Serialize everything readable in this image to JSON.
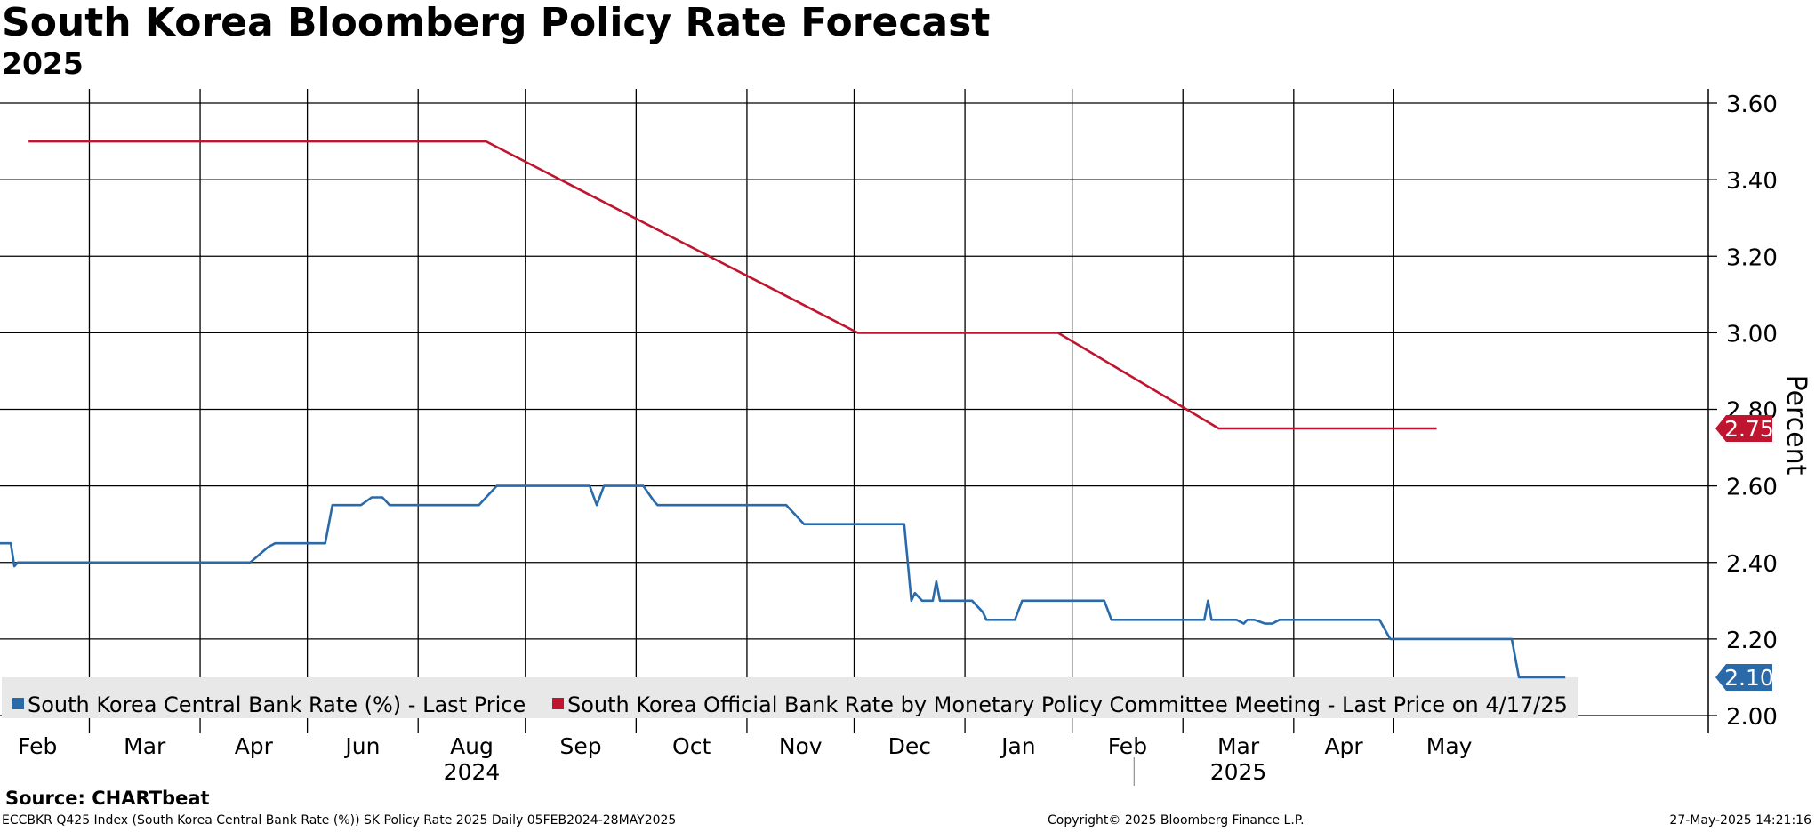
{
  "title": "South Korea Bloomberg Policy Rate Forecast",
  "subtitle": "2025",
  "source": "Source: CHARTbeat",
  "footer": {
    "left": "ECCBKR Q425 Index (South Korea Central Bank Rate (%)) SK Policy Rate 2025  Daily 05FEB2024-28MAY2025",
    "middle": "Copyright© 2025 Bloomberg Finance L.P.",
    "right": "27-May-2025 14:21:16"
  },
  "colors": {
    "blue": "#2b6aa8",
    "red": "#c0152f",
    "grid": "#000000"
  },
  "chart_data": {
    "type": "line",
    "title": "South Korea Bloomberg Policy Rate Forecast",
    "subtitle": "2025",
    "ylabel": "Percent",
    "ylim": [
      2.0,
      3.6
    ],
    "yticks": [
      "2.00",
      "2.20",
      "2.40",
      "2.60",
      "2.80",
      "3.00",
      "3.20",
      "3.40",
      "3.60"
    ],
    "grid": true,
    "legend_position": "bottom-left",
    "xlim": [
      "2024-02-05",
      "2025-05-28"
    ],
    "x_tick_labels": [
      {
        "label": "Feb",
        "date": "2024-02-01"
      },
      {
        "label": "Mar",
        "date": "2024-03-01"
      },
      {
        "label": "Apr",
        "date": "2024-04-01"
      },
      {
        "label": "Jun",
        "date": "2024-05-01"
      },
      {
        "label": "Aug",
        "date": "2024-06-01"
      },
      {
        "label": "Sep",
        "date": "2024-07-01"
      },
      {
        "label": "Oct",
        "date": "2024-08-01"
      },
      {
        "label": "Nov",
        "date": "2024-09-01"
      },
      {
        "label": "Dec",
        "date": "2024-10-01"
      },
      {
        "label": "Jan",
        "date": "2024-11-01"
      },
      {
        "label": "Feb",
        "date": "2024-12-01"
      },
      {
        "label": "Mar",
        "date": "2025-01-01"
      },
      {
        "label": "Apr",
        "date": "2025-02-01"
      },
      {
        "label": "May",
        "date": "2025-03-01"
      }
    ],
    "year_labels": [
      "2024",
      "2025"
    ],
    "series": [
      {
        "name": "South Korea Central Bank Rate (%) - Last Price",
        "color": "#2b6aa8",
        "last_value_label": "2.10",
        "points": [
          [
            "2024-02-05",
            2.45
          ],
          [
            "2024-02-08",
            2.45
          ],
          [
            "2024-02-09",
            2.39
          ],
          [
            "2024-02-10",
            2.4
          ],
          [
            "2024-04-15",
            2.4
          ],
          [
            "2024-04-20",
            2.44
          ],
          [
            "2024-04-22",
            2.45
          ],
          [
            "2024-05-06",
            2.45
          ],
          [
            "2024-05-08",
            2.55
          ],
          [
            "2024-05-16",
            2.55
          ],
          [
            "2024-05-19",
            2.57
          ],
          [
            "2024-05-22",
            2.57
          ],
          [
            "2024-05-24",
            2.55
          ],
          [
            "2024-06-18",
            2.55
          ],
          [
            "2024-06-21",
            2.58
          ],
          [
            "2024-06-23",
            2.6
          ],
          [
            "2024-07-19",
            2.6
          ],
          [
            "2024-07-21",
            2.55
          ],
          [
            "2024-07-23",
            2.6
          ],
          [
            "2024-08-03",
            2.6
          ],
          [
            "2024-08-06",
            2.56
          ],
          [
            "2024-08-07",
            2.55
          ],
          [
            "2024-09-12",
            2.55
          ],
          [
            "2024-09-15",
            2.52
          ],
          [
            "2024-09-17",
            2.5
          ],
          [
            "2024-10-15",
            2.5
          ],
          [
            "2024-10-17",
            2.3
          ],
          [
            "2024-10-18",
            2.32
          ],
          [
            "2024-10-20",
            2.3
          ],
          [
            "2024-10-23",
            2.3
          ],
          [
            "2024-10-24",
            2.35
          ],
          [
            "2024-10-25",
            2.3
          ],
          [
            "2024-11-03",
            2.3
          ],
          [
            "2024-11-06",
            2.27
          ],
          [
            "2024-11-07",
            2.25
          ],
          [
            "2024-11-15",
            2.25
          ],
          [
            "2024-11-17",
            2.3
          ],
          [
            "2024-12-10",
            2.3
          ],
          [
            "2024-12-12",
            2.25
          ],
          [
            "2025-01-07",
            2.25
          ],
          [
            "2025-01-08",
            2.3
          ],
          [
            "2025-01-09",
            2.25
          ],
          [
            "2025-01-16",
            2.25
          ],
          [
            "2025-01-18",
            2.24
          ],
          [
            "2025-01-19",
            2.25
          ],
          [
            "2025-01-21",
            2.25
          ],
          [
            "2025-01-24",
            2.24
          ],
          [
            "2025-01-26",
            2.24
          ],
          [
            "2025-01-28",
            2.25
          ],
          [
            "2025-02-25",
            2.25
          ],
          [
            "2025-02-28",
            2.2
          ],
          [
            "2025-04-03",
            2.2
          ],
          [
            "2025-04-05",
            2.1
          ],
          [
            "2025-04-18",
            2.1
          ]
        ]
      },
      {
        "name": "South Korea Official Bank Rate by Monetary Policy Committee Meeting - Last Price on 4/17/25",
        "color": "#c0152f",
        "last_value_label": "2.75",
        "points": [
          [
            "2024-02-13",
            3.5
          ],
          [
            "2024-06-20",
            3.5
          ],
          [
            "2024-10-02",
            3.0
          ],
          [
            "2024-11-27",
            3.0
          ],
          [
            "2025-01-11",
            2.75
          ],
          [
            "2025-03-13",
            2.75
          ]
        ]
      }
    ]
  }
}
